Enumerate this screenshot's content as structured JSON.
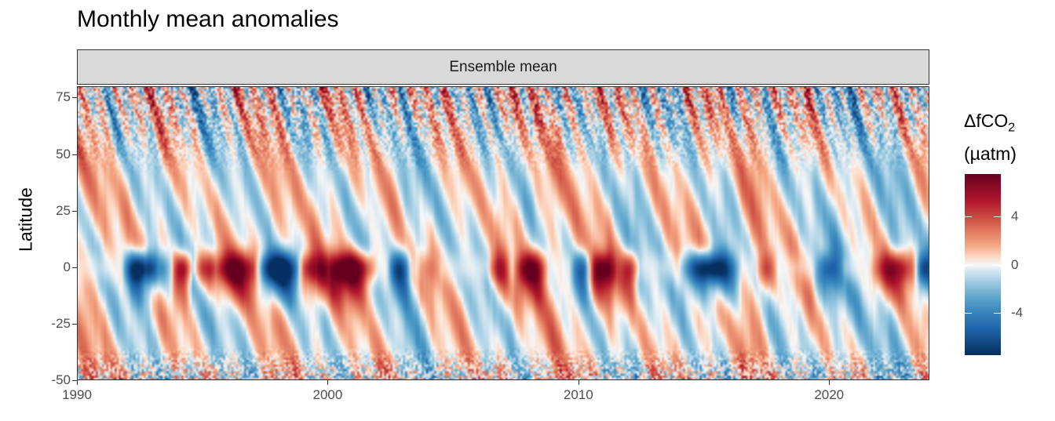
{
  "chart_data": {
    "type": "heatmap",
    "title": "Monthly mean anomalies",
    "facet": "Ensemble mean",
    "xlabel": "",
    "ylabel": "Latitude",
    "xlim": [
      1990,
      2024
    ],
    "ylim": [
      -50,
      80
    ],
    "x_ticks": [
      1990,
      2000,
      2010,
      2020
    ],
    "y_ticks": [
      75,
      50,
      25,
      0,
      -25,
      -50
    ],
    "legend": {
      "title_line1": "ΔfCO",
      "title_sub": "2",
      "title_line2": "(µatm)",
      "ticks": [
        4,
        0,
        -4
      ],
      "range": [
        -7.5,
        7.5
      ],
      "colors": {
        "low": "#053061",
        "mid": "#f7f7f7",
        "high": "#67001f"
      }
    },
    "equatorial_anomalies": [
      {
        "x_start": 1992.0,
        "x_end": 1993.0,
        "value": -7
      },
      {
        "x_start": 1993.0,
        "x_end": 1993.6,
        "value": -3
      },
      {
        "x_start": 1994.0,
        "x_end": 1994.4,
        "value": 5
      },
      {
        "x_start": 1994.9,
        "x_end": 1995.3,
        "value": 4
      },
      {
        "x_start": 1995.4,
        "x_end": 1997.2,
        "value": 6
      },
      {
        "x_start": 1997.3,
        "x_end": 1998.8,
        "value": -7.5
      },
      {
        "x_start": 1999.0,
        "x_end": 1999.8,
        "value": 5
      },
      {
        "x_start": 1999.8,
        "x_end": 2001.8,
        "value": 7
      },
      {
        "x_start": 2002.6,
        "x_end": 2003.1,
        "value": -5
      },
      {
        "x_start": 2003.8,
        "x_end": 2004.3,
        "value": 2
      },
      {
        "x_start": 2006.6,
        "x_end": 2007.1,
        "value": 4
      },
      {
        "x_start": 2007.6,
        "x_end": 2008.6,
        "value": 6
      },
      {
        "x_start": 2009.9,
        "x_end": 2010.4,
        "value": -4
      },
      {
        "x_start": 2010.5,
        "x_end": 2011.5,
        "value": 6
      },
      {
        "x_start": 2011.8,
        "x_end": 2012.2,
        "value": 4
      },
      {
        "x_start": 2014.2,
        "x_end": 2016.3,
        "value": -7
      },
      {
        "x_start": 2017.3,
        "x_end": 2017.7,
        "value": 3
      },
      {
        "x_start": 2019.6,
        "x_end": 2020.4,
        "value": -4
      },
      {
        "x_start": 2021.8,
        "x_end": 2023.4,
        "value": 5
      },
      {
        "x_start": 2023.6,
        "x_end": 2024.0,
        "value": -5
      }
    ]
  }
}
